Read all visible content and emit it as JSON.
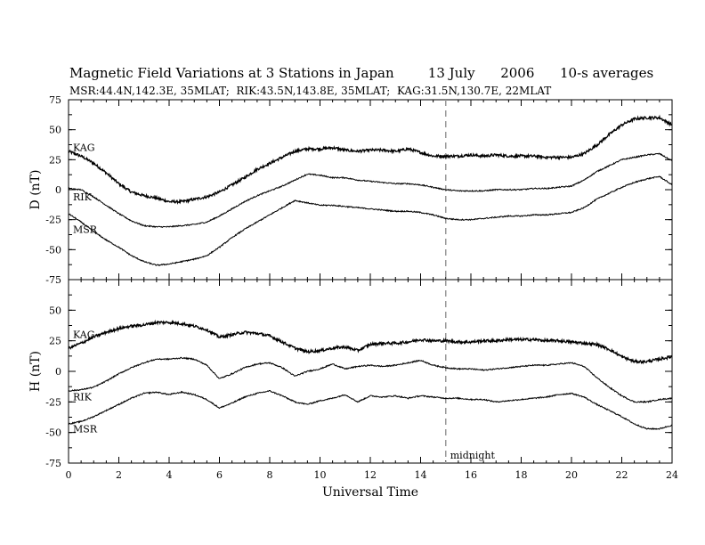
{
  "header": {
    "title": "Magnetic Field Variations at 3 Stations in Japan        13 July      2006      10-s averages",
    "subtitle": "MSR:44.4N,142.3E, 35MLAT;  RIK:43.5N,143.8E, 35MLAT;  KAG:31.5N,130.7E, 22MLAT"
  },
  "chart_data": [
    {
      "type": "line",
      "panel": "top",
      "ylabel": "D (nT)",
      "ylim": [
        -75,
        75
      ],
      "yticks": [
        -75,
        -50,
        -25,
        0,
        25,
        50,
        75
      ],
      "xlim": [
        0,
        24
      ],
      "xticks": [
        0,
        2,
        4,
        6,
        8,
        10,
        12,
        14,
        16,
        18,
        20,
        22,
        24
      ],
      "series": [
        {
          "name": "KAG",
          "x": [
            0,
            0.5,
            1,
            1.5,
            2,
            2.5,
            3,
            3.5,
            4,
            4.5,
            5,
            5.5,
            6,
            6.5,
            7,
            7.5,
            8,
            8.5,
            9,
            9.5,
            10,
            10.5,
            11,
            11.5,
            12,
            12.5,
            13,
            13.5,
            14,
            14.5,
            15,
            15.5,
            16,
            16.5,
            17,
            17.5,
            18,
            18.5,
            19,
            19.5,
            20,
            20.5,
            21,
            21.5,
            22,
            22.5,
            23,
            23.5,
            24
          ],
          "y": [
            32,
            28,
            22,
            14,
            5,
            -2,
            -5,
            -7,
            -10,
            -10,
            -8,
            -6,
            -2,
            4,
            10,
            17,
            22,
            27,
            32,
            34,
            34,
            35,
            33,
            32,
            33,
            33,
            32,
            34,
            31,
            28,
            28,
            28,
            29,
            28,
            29,
            28,
            28,
            28,
            27,
            27,
            27,
            30,
            37,
            46,
            54,
            59,
            60,
            60,
            54
          ]
        },
        {
          "name": "RIK",
          "x": [
            0,
            0.5,
            1,
            1.5,
            2,
            2.5,
            3,
            3.5,
            4,
            4.5,
            5,
            5.5,
            6,
            6.5,
            7,
            7.5,
            8,
            8.5,
            9,
            9.5,
            10,
            10.5,
            11,
            11.5,
            12,
            12.5,
            13,
            13.5,
            14,
            14.5,
            15,
            15.5,
            16,
            16.5,
            17,
            17.5,
            18,
            18.5,
            19,
            19.5,
            20,
            20.5,
            21,
            21.5,
            22,
            22.5,
            23,
            23.5,
            24
          ],
          "y": [
            1,
            0,
            -6,
            -13,
            -20,
            -26,
            -30,
            -31,
            -31,
            -30,
            -29,
            -27,
            -22,
            -16,
            -10,
            -5,
            -1,
            3,
            8,
            13,
            12,
            10,
            10,
            8,
            7,
            6,
            5,
            5,
            4,
            2,
            0,
            -1,
            -1,
            -1,
            0,
            0,
            0,
            1,
            1,
            2,
            3,
            8,
            15,
            20,
            25,
            27,
            29,
            30,
            24
          ]
        },
        {
          "name": "MSR",
          "x": [
            0,
            0.5,
            1,
            1.5,
            2,
            2.5,
            3,
            3.5,
            4,
            4.5,
            5,
            5.5,
            6,
            6.5,
            7,
            7.5,
            8,
            8.5,
            9,
            9.5,
            10,
            10.5,
            11,
            11.5,
            12,
            12.5,
            13,
            13.5,
            14,
            14.5,
            15,
            15.5,
            16,
            16.5,
            17,
            17.5,
            18,
            18.5,
            19,
            19.5,
            20,
            20.5,
            21,
            21.5,
            22,
            22.5,
            23,
            23.5,
            24
          ],
          "y": [
            -20,
            -27,
            -35,
            -42,
            -48,
            -55,
            -60,
            -63,
            -62,
            -60,
            -58,
            -55,
            -48,
            -40,
            -33,
            -27,
            -21,
            -15,
            -9,
            -11,
            -13,
            -13,
            -14,
            -15,
            -16,
            -17,
            -18,
            -18,
            -19,
            -21,
            -24,
            -25,
            -25,
            -24,
            -23,
            -22,
            -22,
            -21,
            -21,
            -20,
            -19,
            -15,
            -8,
            -3,
            2,
            6,
            9,
            11,
            4
          ]
        }
      ]
    },
    {
      "type": "line",
      "panel": "bottom",
      "ylabel": "H (nT)",
      "ylim": [
        -75,
        75
      ],
      "yticks": [
        -75,
        -50,
        -25,
        0,
        25,
        50
      ],
      "xlim": [
        0,
        24
      ],
      "xticks": [
        0,
        2,
        4,
        6,
        8,
        10,
        12,
        14,
        16,
        18,
        20,
        22,
        24
      ],
      "xlabel": "Universal Time",
      "annotation": {
        "text": "midnight",
        "x": 15
      },
      "series": [
        {
          "name": "KAG",
          "x": [
            0,
            0.5,
            1,
            1.5,
            2,
            2.5,
            3,
            3.5,
            4,
            4.5,
            5,
            5.5,
            6,
            6.5,
            7,
            7.5,
            8,
            8.5,
            9,
            9.5,
            10,
            10.5,
            11,
            11.5,
            12,
            12.5,
            13,
            13.5,
            14,
            14.5,
            15,
            15.5,
            16,
            16.5,
            17,
            17.5,
            18,
            18.5,
            19,
            19.5,
            20,
            20.5,
            21,
            21.5,
            22,
            22.5,
            23,
            23.5,
            24
          ],
          "y": [
            19,
            23,
            28,
            32,
            35,
            37,
            38,
            40,
            40,
            39,
            37,
            34,
            28,
            30,
            32,
            31,
            29,
            24,
            19,
            16,
            17,
            19,
            20,
            17,
            22,
            23,
            23,
            24,
            26,
            25,
            25,
            24,
            24,
            25,
            25,
            26,
            26,
            26,
            25,
            25,
            24,
            23,
            22,
            18,
            12,
            8,
            8,
            10,
            12
          ]
        },
        {
          "name": "RIK",
          "x": [
            0,
            0.5,
            1,
            1.5,
            2,
            2.5,
            3,
            3.5,
            4,
            4.5,
            5,
            5.5,
            6,
            6.5,
            7,
            7.5,
            8,
            8.5,
            9,
            9.5,
            10,
            10.5,
            11,
            11.5,
            12,
            12.5,
            13,
            13.5,
            14,
            14.5,
            15,
            15.5,
            16,
            16.5,
            17,
            17.5,
            18,
            18.5,
            19,
            19.5,
            20,
            20.5,
            21,
            21.5,
            22,
            22.5,
            23,
            23.5,
            24
          ],
          "y": [
            -16,
            -15,
            -13,
            -8,
            -2,
            3,
            7,
            10,
            10,
            11,
            10,
            5,
            -6,
            -2,
            3,
            6,
            7,
            3,
            -4,
            0,
            2,
            6,
            2,
            4,
            5,
            4,
            5,
            7,
            9,
            5,
            3,
            2,
            2,
            1,
            2,
            3,
            4,
            5,
            5,
            6,
            7,
            4,
            -5,
            -13,
            -20,
            -25,
            -25,
            -23,
            -22
          ]
        },
        {
          "name": "MSR",
          "x": [
            0,
            0.5,
            1,
            1.5,
            2,
            2.5,
            3,
            3.5,
            4,
            4.5,
            5,
            5.5,
            6,
            6.5,
            7,
            7.5,
            8,
            8.5,
            9,
            9.5,
            10,
            10.5,
            11,
            11.5,
            12,
            12.5,
            13,
            13.5,
            14,
            14.5,
            15,
            15.5,
            16,
            16.5,
            17,
            17.5,
            18,
            18.5,
            19,
            19.5,
            20,
            20.5,
            21,
            21.5,
            22,
            22.5,
            23,
            23.5,
            24
          ],
          "y": [
            -43,
            -41,
            -37,
            -32,
            -27,
            -22,
            -18,
            -17,
            -19,
            -17,
            -19,
            -23,
            -30,
            -26,
            -21,
            -18,
            -16,
            -20,
            -25,
            -27,
            -24,
            -22,
            -19,
            -25,
            -20,
            -21,
            -20,
            -22,
            -20,
            -21,
            -22,
            -22,
            -23,
            -23,
            -25,
            -24,
            -23,
            -22,
            -21,
            -19,
            -18,
            -21,
            -27,
            -32,
            -37,
            -43,
            -47,
            -47,
            -44
          ]
        }
      ]
    }
  ]
}
